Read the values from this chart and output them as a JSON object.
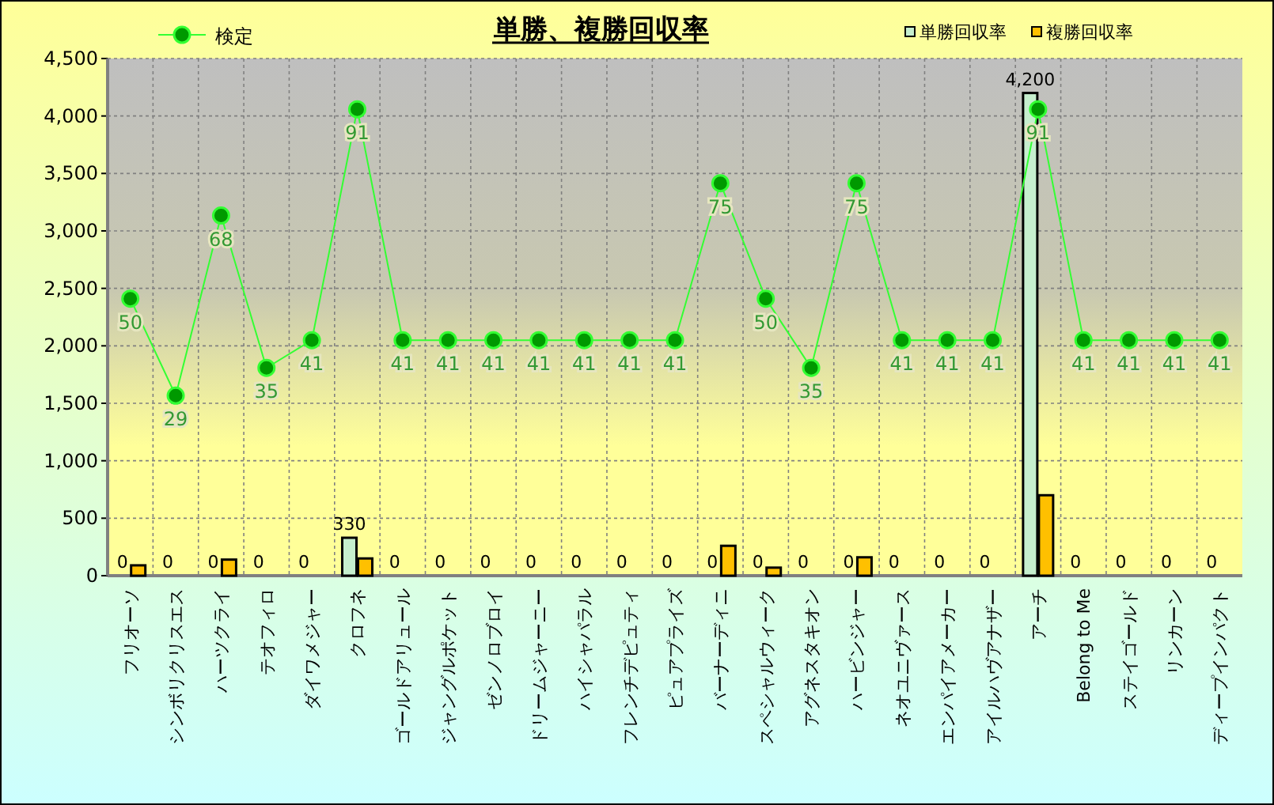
{
  "chart_data": {
    "type": "bar",
    "title": "単勝、複勝回収率",
    "categories": [
      "フリオーソ",
      "シンボリクリスエス",
      "ハーツクライ",
      "テオフィロ",
      "ダイワメジャー",
      "クロフネ",
      "ゴールドアリュール",
      "ジャングルポケット",
      "ゼンノロブロイ",
      "ドリームジャーニー",
      "ハイシャパラル",
      "フレンチデピュティ",
      "ピュアプライズ",
      "バーナーディニ",
      "スペシャルウィーク",
      "アグネスタキオン",
      "ハービンジャー",
      "ネオユニヴァース",
      "エンパイアメーカー",
      "アイルハヴアナザー",
      "アーチ",
      "Belong to Me",
      "ステイゴールド",
      "リンカーン",
      "ディープインパクト"
    ],
    "series": [
      {
        "name": "単勝回収率",
        "color": "#c6efce",
        "values": [
          0,
          0,
          0,
          0,
          0,
          330,
          0,
          0,
          0,
          0,
          0,
          0,
          0,
          0,
          0,
          0,
          0,
          0,
          0,
          0,
          4200,
          0,
          0,
          0,
          0
        ],
        "value_labels": [
          "0",
          "0",
          "0",
          "0",
          "0",
          "330",
          "0",
          "0",
          "0",
          "0",
          "0",
          "0",
          "0",
          "0",
          "0",
          "0",
          "0",
          "0",
          "0",
          "0",
          "4,200",
          "0",
          "0",
          "0",
          "0"
        ]
      },
      {
        "name": "複勝回収率",
        "color": "#ffc000",
        "values": [
          90,
          0,
          140,
          0,
          0,
          150,
          0,
          0,
          0,
          0,
          0,
          0,
          0,
          260,
          70,
          0,
          160,
          0,
          0,
          0,
          700,
          0,
          0,
          0,
          0
        ]
      },
      {
        "name": "検定",
        "type": "line",
        "axis": "y2",
        "color": "#33ff33",
        "values": [
          50,
          29,
          68,
          35,
          41,
          91,
          41,
          41,
          41,
          41,
          41,
          41,
          41,
          75,
          50,
          35,
          75,
          41,
          41,
          41,
          91,
          41,
          41,
          41,
          41
        ],
        "value_labels": [
          "50",
          "29",
          "68",
          "35",
          "41",
          "91",
          "41",
          "41",
          "41",
          "41",
          "41",
          "41",
          "41",
          "75",
          "50",
          "35",
          "75",
          "41",
          "41",
          "41",
          "91",
          "41",
          "41",
          "41",
          "41"
        ]
      }
    ],
    "ylim": [
      0,
      4500
    ],
    "yticks": [
      {
        "value": 0,
        "label": "0"
      },
      {
        "value": 500,
        "label": "500"
      },
      {
        "value": 1000,
        "label": "1,000"
      },
      {
        "value": 1500,
        "label": "1,500"
      },
      {
        "value": 2000,
        "label": "2,000"
      },
      {
        "value": 2500,
        "label": "2,500"
      },
      {
        "value": 3000,
        "label": "3,000"
      },
      {
        "value": 3500,
        "label": "3,500"
      },
      {
        "value": 4000,
        "label": "4,000"
      },
      {
        "value": 4500,
        "label": "4,500"
      }
    ],
    "y2lim": [
      -10,
      102
    ],
    "grid": true,
    "legend": "top",
    "marker": "circle",
    "line_style": "solid"
  }
}
